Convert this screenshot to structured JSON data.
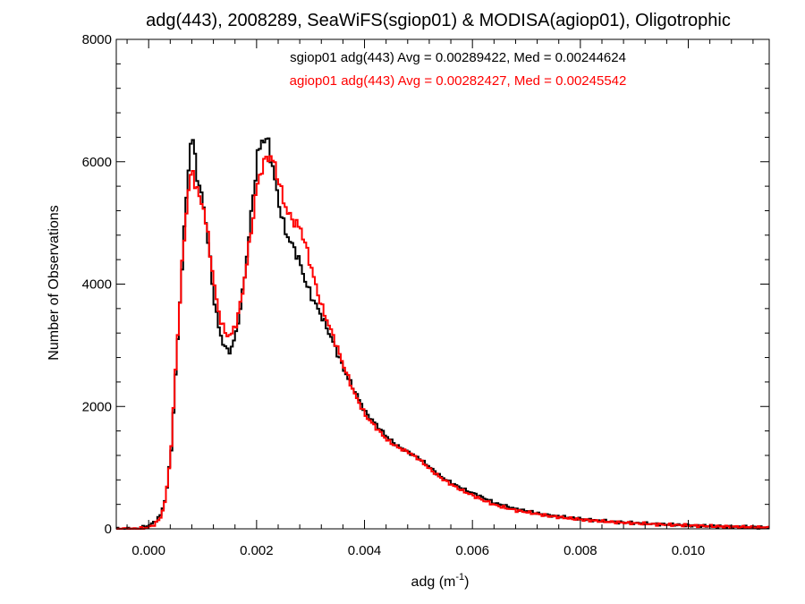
{
  "chart_data": {
    "type": "line",
    "title": "adg(443), 2008289, SeaWiFS(sgiop01) & MODISA(agiop01), Oligotrophic",
    "xlabel": "adg (m",
    "xlabel_sup": "-1",
    "xlabel_close": ")",
    "ylabel": "Number of Observations",
    "xlim": [
      -0.0006,
      0.0115
    ],
    "ylim": [
      0,
      8000
    ],
    "x_ticks": [
      0.0,
      0.002,
      0.004,
      0.006,
      0.008,
      0.01
    ],
    "x_tick_labels": [
      "0.000",
      "0.002",
      "0.004",
      "0.006",
      "0.008",
      "0.010"
    ],
    "y_ticks": [
      0,
      2000,
      4000,
      6000,
      8000
    ],
    "y_tick_labels": [
      "0",
      "2000",
      "4000",
      "6000",
      "8000"
    ],
    "grid": false,
    "annotations": [
      {
        "text": "sgiop01 adg(443) Avg = 0.00289422, Med = 0.00244624",
        "color": "#000000"
      },
      {
        "text": "agiop01 adg(443) Avg = 0.00282427, Med = 0.00245542",
        "color": "#ff0000"
      }
    ],
    "series": [
      {
        "color": "#000000",
        "points": [
          [
            -0.0006,
            0
          ],
          [
            -0.0002,
            0
          ],
          [
            0.0,
            60
          ],
          [
            0.0001,
            120
          ],
          [
            0.0002,
            220
          ],
          [
            0.0003,
            520
          ],
          [
            0.0004,
            1300
          ],
          [
            0.0005,
            2800
          ],
          [
            0.0006,
            4300
          ],
          [
            0.0007,
            5700
          ],
          [
            0.00075,
            6250
          ],
          [
            0.0008,
            6350
          ],
          [
            0.00085,
            6000
          ],
          [
            0.0009,
            5650
          ],
          [
            0.001,
            5300
          ],
          [
            0.0011,
            4550
          ],
          [
            0.0012,
            3700
          ],
          [
            0.0013,
            3200
          ],
          [
            0.0014,
            2950
          ],
          [
            0.0015,
            2900
          ],
          [
            0.0016,
            3200
          ],
          [
            0.0017,
            3700
          ],
          [
            0.0018,
            4450
          ],
          [
            0.0019,
            5300
          ],
          [
            0.002,
            6100
          ],
          [
            0.0021,
            6400
          ],
          [
            0.0022,
            6300
          ],
          [
            0.0023,
            5800
          ],
          [
            0.0024,
            5300
          ],
          [
            0.0025,
            4900
          ],
          [
            0.0026,
            4700
          ],
          [
            0.0027,
            4550
          ],
          [
            0.0028,
            4300
          ],
          [
            0.0029,
            4000
          ],
          [
            0.003,
            3800
          ],
          [
            0.0032,
            3450
          ],
          [
            0.0034,
            3050
          ],
          [
            0.0036,
            2600
          ],
          [
            0.0038,
            2250
          ],
          [
            0.004,
            1900
          ],
          [
            0.0042,
            1700
          ],
          [
            0.0044,
            1500
          ],
          [
            0.0046,
            1350
          ],
          [
            0.0048,
            1250
          ],
          [
            0.005,
            1150
          ],
          [
            0.0052,
            1000
          ],
          [
            0.0054,
            850
          ],
          [
            0.0056,
            750
          ],
          [
            0.0058,
            650
          ],
          [
            0.006,
            580
          ],
          [
            0.0062,
            500
          ],
          [
            0.0064,
            420
          ],
          [
            0.0066,
            370
          ],
          [
            0.0068,
            320
          ],
          [
            0.007,
            290
          ],
          [
            0.0072,
            250
          ],
          [
            0.0074,
            220
          ],
          [
            0.0076,
            200
          ],
          [
            0.0078,
            180
          ],
          [
            0.008,
            160
          ],
          [
            0.0085,
            120
          ],
          [
            0.009,
            95
          ],
          [
            0.0095,
            75
          ],
          [
            0.01,
            55
          ],
          [
            0.0105,
            40
          ],
          [
            0.011,
            30
          ],
          [
            0.0115,
            20
          ]
        ]
      },
      {
        "color": "#ff0000",
        "points": [
          [
            -0.0006,
            0
          ],
          [
            -0.0002,
            0
          ],
          [
            0.0,
            30
          ],
          [
            0.0001,
            80
          ],
          [
            0.0002,
            180
          ],
          [
            0.0003,
            500
          ],
          [
            0.0004,
            1350
          ],
          [
            0.0005,
            2900
          ],
          [
            0.0006,
            4300
          ],
          [
            0.0007,
            5400
          ],
          [
            0.00075,
            5750
          ],
          [
            0.0008,
            5800
          ],
          [
            0.00085,
            5650
          ],
          [
            0.0009,
            5450
          ],
          [
            0.001,
            5250
          ],
          [
            0.0011,
            4650
          ],
          [
            0.0012,
            3950
          ],
          [
            0.0013,
            3450
          ],
          [
            0.0014,
            3200
          ],
          [
            0.0015,
            3150
          ],
          [
            0.0016,
            3350
          ],
          [
            0.0017,
            3750
          ],
          [
            0.0018,
            4350
          ],
          [
            0.0019,
            5000
          ],
          [
            0.002,
            5650
          ],
          [
            0.0021,
            5950
          ],
          [
            0.0022,
            6100
          ],
          [
            0.0023,
            6000
          ],
          [
            0.0024,
            5650
          ],
          [
            0.0025,
            5300
          ],
          [
            0.0026,
            5100
          ],
          [
            0.0027,
            5000
          ],
          [
            0.0028,
            4900
          ],
          [
            0.0029,
            4600
          ],
          [
            0.003,
            4250
          ],
          [
            0.0031,
            3900
          ],
          [
            0.0032,
            3600
          ],
          [
            0.0034,
            3150
          ],
          [
            0.0036,
            2650
          ],
          [
            0.0038,
            2200
          ],
          [
            0.004,
            1850
          ],
          [
            0.0042,
            1650
          ],
          [
            0.0044,
            1450
          ],
          [
            0.0046,
            1330
          ],
          [
            0.0048,
            1250
          ],
          [
            0.005,
            1130
          ],
          [
            0.0052,
            970
          ],
          [
            0.0054,
            830
          ],
          [
            0.0056,
            720
          ],
          [
            0.0058,
            620
          ],
          [
            0.006,
            540
          ],
          [
            0.0062,
            460
          ],
          [
            0.0064,
            390
          ],
          [
            0.0066,
            340
          ],
          [
            0.0068,
            300
          ],
          [
            0.007,
            270
          ],
          [
            0.0072,
            240
          ],
          [
            0.0074,
            210
          ],
          [
            0.0076,
            190
          ],
          [
            0.0078,
            170
          ],
          [
            0.008,
            150
          ],
          [
            0.0085,
            115
          ],
          [
            0.009,
            90
          ],
          [
            0.0095,
            70
          ],
          [
            0.01,
            55
          ],
          [
            0.0105,
            40
          ],
          [
            0.011,
            30
          ],
          [
            0.0115,
            20
          ]
        ]
      }
    ]
  }
}
